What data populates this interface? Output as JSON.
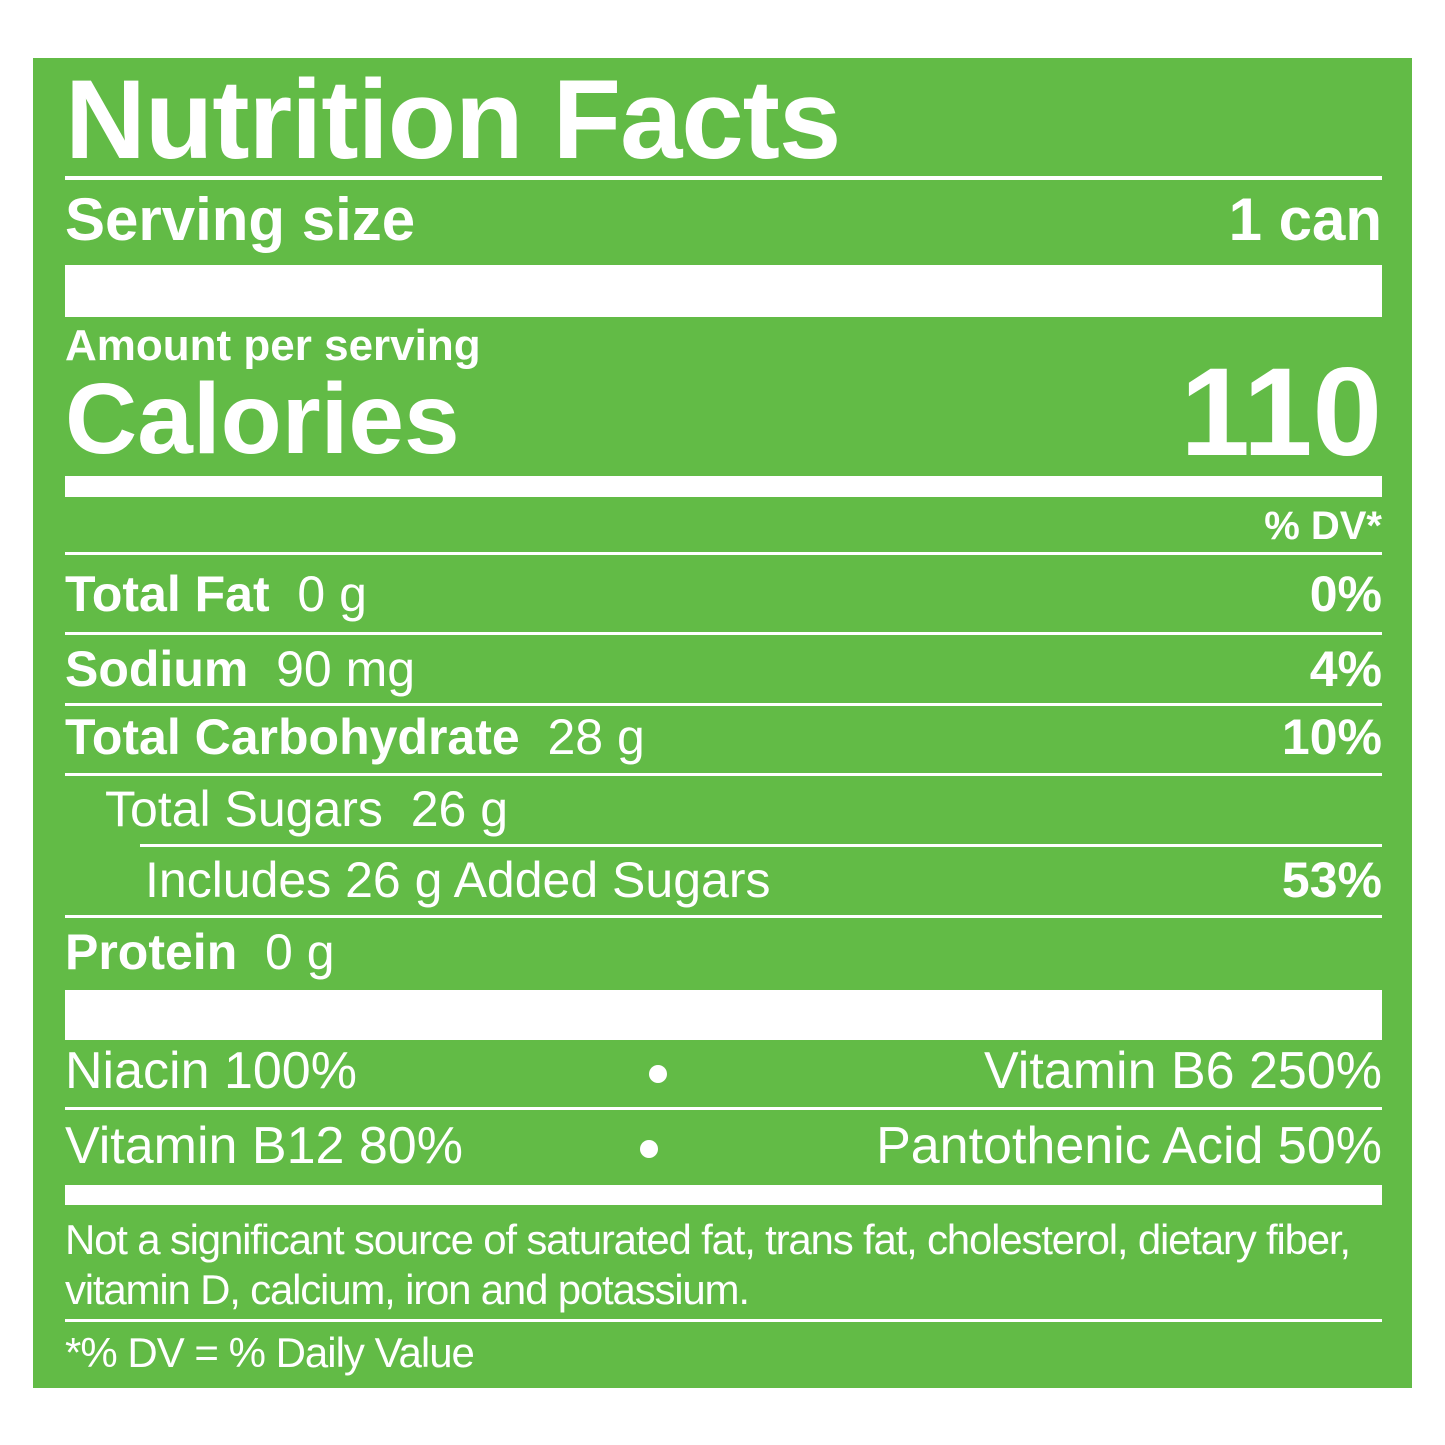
{
  "title": "Nutrition Facts",
  "serving": {
    "label": "Serving size",
    "value": "1 can"
  },
  "amount_per_serving": "Amount per serving",
  "calories": {
    "label": "Calories",
    "value": "110"
  },
  "dv_header": "% DV*",
  "nutrients": [
    {
      "name": "Total Fat",
      "amount": "0 g",
      "dv": "0%"
    },
    {
      "name": "Sodium",
      "amount": "90 mg",
      "dv": "4%"
    },
    {
      "name": "Total Carbohydrate",
      "amount": "28 g",
      "dv": "10%"
    },
    {
      "name": "Total Sugars",
      "amount": "26 g"
    },
    {
      "name": "Includes 26 g Added Sugars",
      "dv": "53%"
    },
    {
      "name": "Protein",
      "amount": "0 g"
    }
  ],
  "vitamins": [
    [
      "Niacin 100%",
      "Vitamin B6 250%"
    ],
    [
      "Vitamin B12 80%",
      "Pantothenic Acid 50%"
    ]
  ],
  "footnote": "Not a significant source of saturated fat, trans fat, cholesterol, dietary fiber, vitamin D, calcium, iron and potassium.",
  "dv_note": "*% DV = % Daily Value"
}
